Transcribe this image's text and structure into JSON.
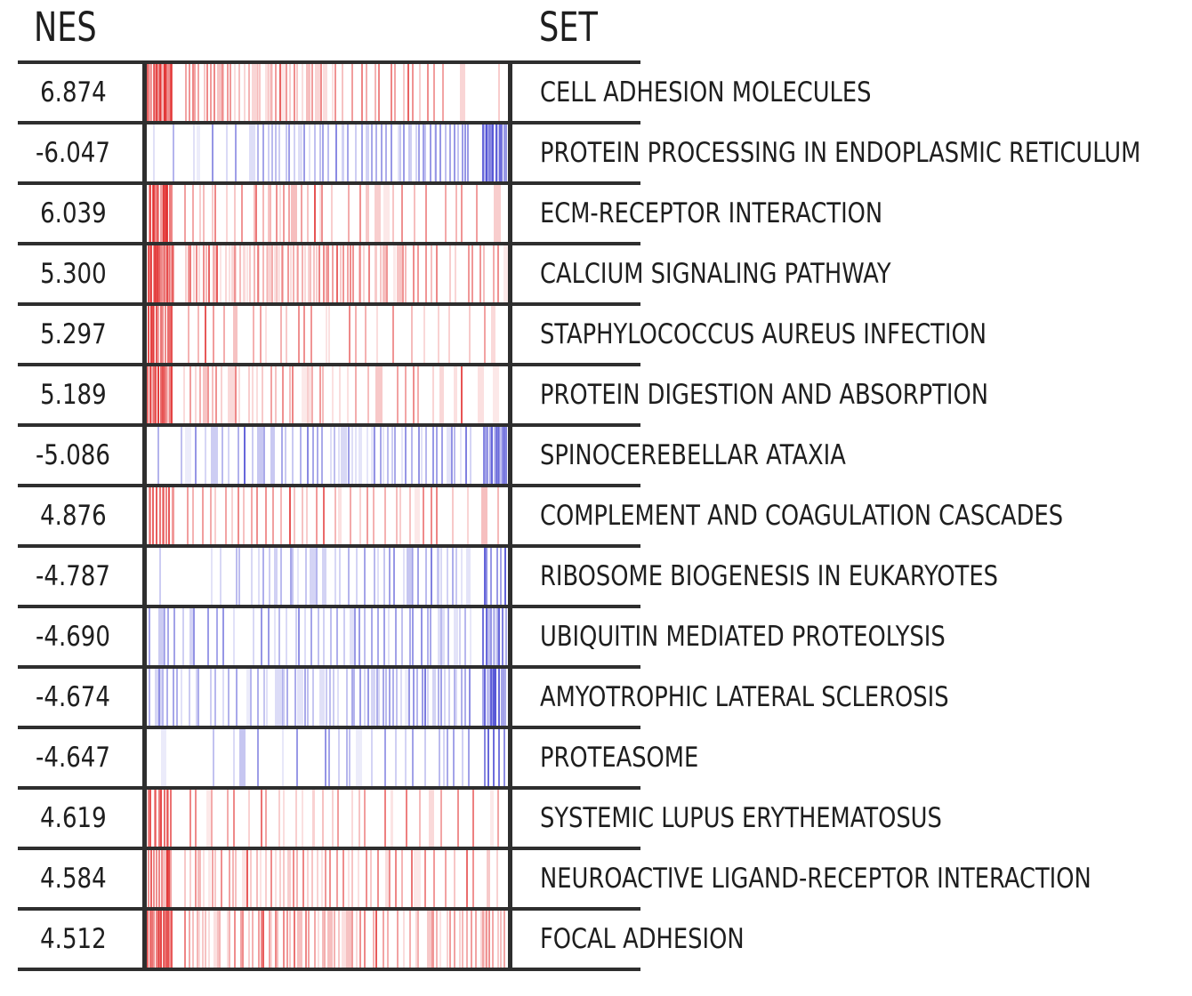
{
  "header": {
    "nes_label": "NES",
    "set_label": "SET"
  },
  "colors": {
    "positive_tick": "#e12c2c",
    "negative_tick": "#4646d2",
    "grid_line": "#2e2e2e",
    "text": "#1e1e1e",
    "background": "#ffffff"
  },
  "chart_data": {
    "type": "barcode",
    "title": "",
    "columns": [
      "NES",
      "SET"
    ],
    "legend_position": "none",
    "grid": "row-separators",
    "tick_bins_meaning": "approximate tick density per decile of the gene-rank axis (left to right)",
    "rows": [
      {
        "nes": "6.874",
        "direction": "positive",
        "set": "CELL ADHESION MOLECULES",
        "tick_bins": [
          16,
          10,
          8,
          10,
          8,
          5,
          5,
          6,
          2,
          1
        ]
      },
      {
        "nes": "-6.047",
        "direction": "negative",
        "set": "PROTEIN PROCESSING IN ENDOPLASMIC RETICULUM",
        "tick_bins": [
          2,
          3,
          3,
          8,
          7,
          6,
          7,
          10,
          9,
          12
        ]
      },
      {
        "nes": "6.039",
        "direction": "positive",
        "set": "ECM-RECEPTOR INTERACTION",
        "tick_bins": [
          14,
          6,
          4,
          8,
          6,
          3,
          4,
          3,
          3,
          2
        ]
      },
      {
        "nes": "5.300",
        "direction": "positive",
        "set": "CALCIUM SIGNALING PATHWAY",
        "tick_bins": [
          16,
          12,
          10,
          12,
          12,
          10,
          8,
          6,
          4,
          6
        ]
      },
      {
        "nes": "5.297",
        "direction": "positive",
        "set": "STAPHYLOCOCCUS AUREUS INFECTION",
        "tick_bins": [
          12,
          4,
          3,
          4,
          4,
          3,
          3,
          2,
          3,
          2
        ]
      },
      {
        "nes": "5.189",
        "direction": "positive",
        "set": "PROTEIN DIGESTION AND ABSORPTION",
        "tick_bins": [
          14,
          8,
          6,
          6,
          6,
          4,
          3,
          4,
          3,
          2
        ]
      },
      {
        "nes": "-5.086",
        "direction": "negative",
        "set": "SPINOCEREBELLAR ATAXIA",
        "tick_bins": [
          2,
          4,
          5,
          5,
          6,
          8,
          8,
          7,
          8,
          12
        ]
      },
      {
        "nes": "4.876",
        "direction": "positive",
        "set": "COMPLEMENT AND COAGULATION CASCADES",
        "tick_bins": [
          10,
          5,
          5,
          5,
          5,
          4,
          4,
          5,
          3,
          2
        ]
      },
      {
        "nes": "-4.787",
        "direction": "negative",
        "set": "RIBOSOME BIOGENESIS IN EUKARYOTES",
        "tick_bins": [
          1,
          1,
          4,
          6,
          6,
          4,
          6,
          6,
          7,
          6
        ]
      },
      {
        "nes": "-4.690",
        "direction": "negative",
        "set": "UBIQUITIN MEDIATED PROTEOLYSIS",
        "tick_bins": [
          6,
          4,
          3,
          5,
          6,
          6,
          6,
          6,
          7,
          9
        ]
      },
      {
        "nes": "-4.674",
        "direction": "negative",
        "set": "AMYOTROPHIC LATERAL SCLEROSIS",
        "tick_bins": [
          8,
          5,
          5,
          7,
          7,
          7,
          10,
          9,
          9,
          11
        ]
      },
      {
        "nes": "-4.647",
        "direction": "negative",
        "set": "PROTEASOME",
        "tick_bins": [
          1,
          1,
          2,
          2,
          2,
          5,
          3,
          3,
          6,
          5
        ]
      },
      {
        "nes": "4.619",
        "direction": "positive",
        "set": "SYSTEMIC LUPUS ERYTHEMATOSUS",
        "tick_bins": [
          10,
          4,
          3,
          4,
          4,
          4,
          3,
          3,
          2,
          3
        ]
      },
      {
        "nes": "4.584",
        "direction": "positive",
        "set": "NEUROACTIVE LIGAND-RECEPTOR INTERACTION",
        "tick_bins": [
          10,
          8,
          7,
          8,
          8,
          6,
          6,
          5,
          3,
          3
        ]
      },
      {
        "nes": "4.512",
        "direction": "positive",
        "set": "FOCAL ADHESION",
        "tick_bins": [
          14,
          10,
          8,
          10,
          9,
          8,
          6,
          6,
          8,
          10
        ]
      }
    ]
  }
}
